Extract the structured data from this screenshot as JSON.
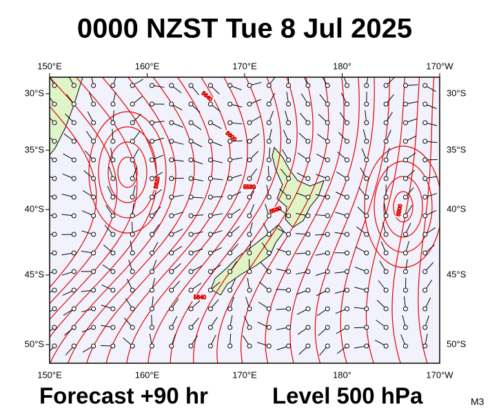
{
  "header": {
    "title": "0000 NZST Tue 8 Jul 2025"
  },
  "map": {
    "lon_labels": [
      "150°E",
      "160°E",
      "170°E",
      "180°",
      "170°W"
    ],
    "lat_labels": [
      "30°S",
      "35°S",
      "40°S",
      "45°S",
      "50°S"
    ],
    "contour_labels": [
      "5640",
      "5600",
      "5580",
      "5560",
      "5640",
      "5500",
      "5620"
    ]
  },
  "footer": {
    "forecast": "Forecast +90 hr",
    "level": "Level 500 hPa",
    "code": "M3"
  }
}
